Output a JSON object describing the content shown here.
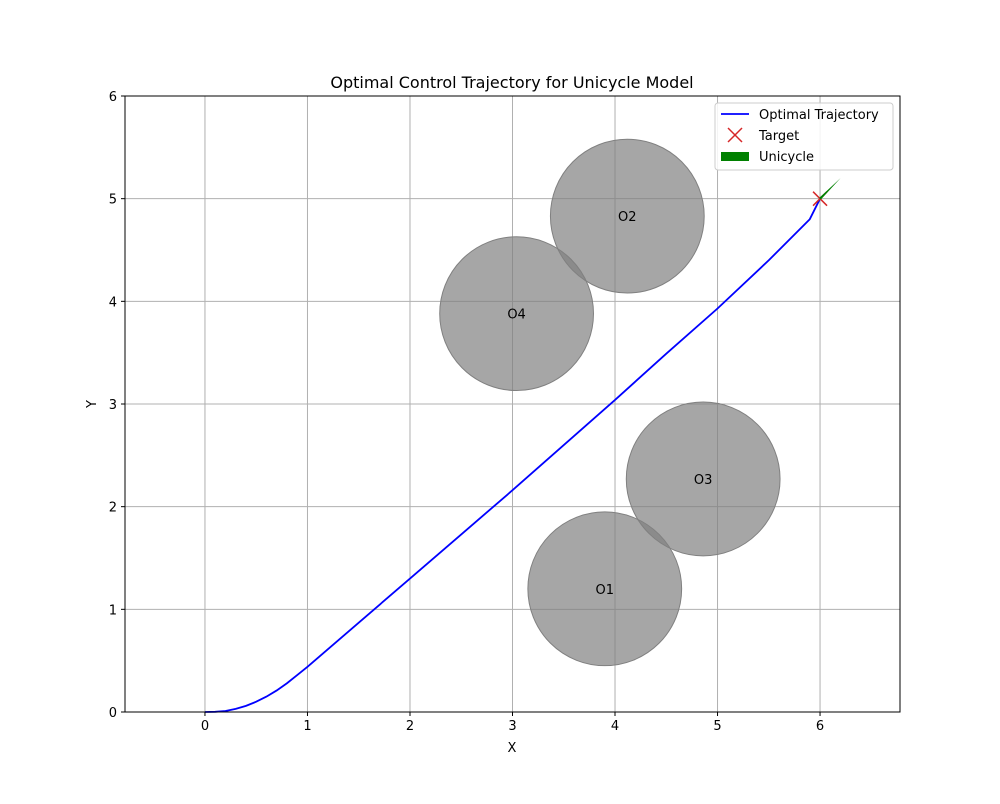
{
  "chart_data": {
    "type": "line",
    "title": "Optimal Control Trajectory for Unicycle Model",
    "xlabel": "X",
    "ylabel": "Y",
    "xlim": [
      -0.78,
      6.78
    ],
    "ylim": [
      0,
      6
    ],
    "xticks": [
      0,
      1,
      2,
      3,
      4,
      5,
      6
    ],
    "yticks": [
      0,
      1,
      2,
      3,
      4,
      5,
      6
    ],
    "grid": true,
    "legend_position": "top-right",
    "colors": {
      "trajectory": "#0000ff",
      "target": "#d62728",
      "unicycle": "#008000",
      "obstacle": "#808080"
    },
    "series": [
      {
        "name": "Optimal Trajectory",
        "type": "line",
        "x": [
          0,
          0.1,
          0.2,
          0.3,
          0.4,
          0.5,
          0.6,
          0.7,
          0.8,
          0.9,
          1.0,
          1.5,
          2.0,
          2.5,
          3.0,
          3.5,
          4.0,
          4.5,
          5.0,
          5.5,
          5.9,
          6.0
        ],
        "y": [
          0,
          0.002,
          0.01,
          0.03,
          0.06,
          0.1,
          0.15,
          0.21,
          0.28,
          0.36,
          0.44,
          0.87,
          1.3,
          1.73,
          2.16,
          2.6,
          3.04,
          3.49,
          3.93,
          4.4,
          4.8,
          5.0
        ]
      },
      {
        "name": "Target",
        "type": "scatter",
        "marker": "x",
        "x": [
          6.0
        ],
        "y": [
          5.0
        ]
      },
      {
        "name": "Unicycle",
        "type": "arrow",
        "x": [
          6.0
        ],
        "y": [
          5.0
        ],
        "dx": 0.2,
        "dy": 0.2
      }
    ],
    "obstacles": [
      {
        "label": "O1",
        "x": 3.9,
        "y": 1.2,
        "r": 0.75
      },
      {
        "label": "O2",
        "x": 4.12,
        "y": 4.83,
        "r": 0.75
      },
      {
        "label": "O3",
        "x": 4.86,
        "y": 2.27,
        "r": 0.75
      },
      {
        "label": "O4",
        "x": 3.04,
        "y": 3.88,
        "r": 0.75
      }
    ]
  }
}
